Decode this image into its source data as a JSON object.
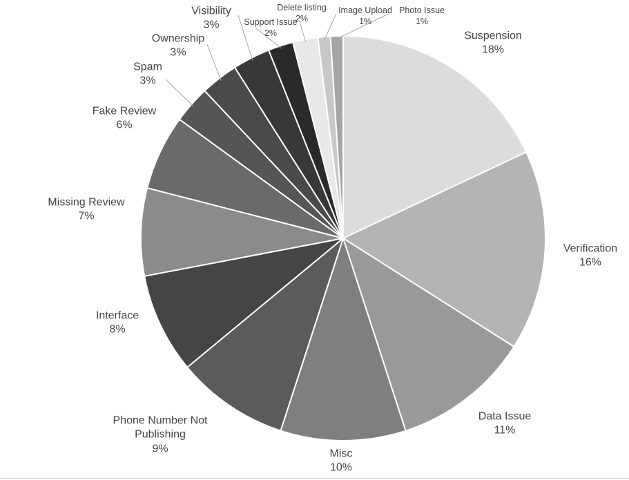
{
  "chart_data": {
    "type": "pie",
    "title": "",
    "slices": [
      {
        "label": "Suspension",
        "value": 18,
        "display": "18%",
        "color": "#dcdcdc"
      },
      {
        "label": "Verification",
        "value": 16,
        "display": "16%",
        "color": "#b4b4b4"
      },
      {
        "label": "Data Issue",
        "value": 11,
        "display": "11%",
        "color": "#999999"
      },
      {
        "label": "Misc",
        "value": 10,
        "display": "10%",
        "color": "#7f7f7f"
      },
      {
        "label": "Phone Number Not Publishing",
        "value": 9,
        "display": "9%",
        "color": "#5b5b5b"
      },
      {
        "label": "Interface",
        "value": 8,
        "display": "8%",
        "color": "#454545"
      },
      {
        "label": "Missing Review",
        "value": 7,
        "display": "7%",
        "color": "#8b8b8b"
      },
      {
        "label": "Fake Review",
        "value": 6,
        "display": "6%",
        "color": "#6a6a6a"
      },
      {
        "label": "Spam",
        "value": 3,
        "display": "3%",
        "color": "#555555"
      },
      {
        "label": "Ownership",
        "value": 3,
        "display": "3%",
        "color": "#4a4a4a"
      },
      {
        "label": "Visibility",
        "value": 3,
        "display": "3%",
        "color": "#383838"
      },
      {
        "label": "Support Issue",
        "value": 2,
        "display": "2%",
        "color": "#2a2a2a"
      },
      {
        "label": "Delete listing",
        "value": 2,
        "display": "2%",
        "color": "#e8e8e8"
      },
      {
        "label": "Image Upload",
        "value": 1,
        "display": "1%",
        "color": "#c8c8c8"
      },
      {
        "label": "Photo Issue",
        "value": 1,
        "display": "1%",
        "color": "#a5a5a5"
      }
    ],
    "start_angle": "12 o'clock",
    "direction": "clockwise",
    "legend": "none",
    "data_labels": "category name and percentage outside slices",
    "leader_lines_for": [
      "Spam",
      "Ownership",
      "Visibility",
      "Support Issue",
      "Delete listing",
      "Image Upload",
      "Photo Issue"
    ]
  }
}
